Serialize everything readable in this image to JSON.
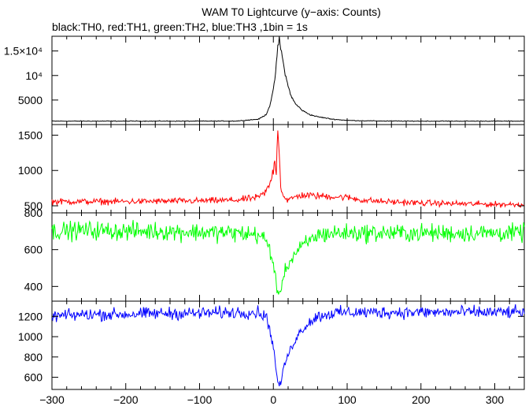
{
  "header": {
    "title": "WAM T0 Lightcurve (y−axis: Counts)",
    "subtitle": "black:TH0, red:TH1, green:TH2, blue:TH3 ,1bin = 1s"
  },
  "chart_data": [
    {
      "type": "line",
      "series": [
        {
          "color": "#000000",
          "x": [
            -300,
            -250,
            -200,
            -150,
            -100,
            -50,
            -20,
            -10,
            -5,
            0,
            2,
            4,
            6,
            8,
            10,
            12,
            14,
            16,
            18,
            20,
            25,
            30,
            40,
            50,
            60,
            80,
            100,
            120,
            150,
            200,
            250,
            300,
            340
          ],
          "y": [
            700,
            700,
            700,
            700,
            700,
            720,
            1100,
            2000,
            3800,
            7000,
            9200,
            12500,
            15500,
            17500,
            15600,
            13800,
            12000,
            10500,
            9000,
            7800,
            5500,
            4200,
            2800,
            2000,
            1600,
            1100,
            850,
            780,
            720,
            700,
            700,
            700,
            700
          ]
        }
      ],
      "xlim": [
        -300,
        340
      ],
      "ylim": [
        0,
        18000
      ],
      "ytick_labels": [
        {
          "value": 5000,
          "text": "5000"
        },
        {
          "value": 10000,
          "text": "10⁴"
        },
        {
          "value": 15000,
          "text": "1.5×10⁴"
        }
      ],
      "yticks": [
        5000,
        10000,
        15000
      ]
    },
    {
      "type": "line",
      "series": [
        {
          "color": "#ff0000",
          "x": [
            -300,
            -250,
            -200,
            -150,
            -100,
            -50,
            -20,
            -10,
            -5,
            0,
            2,
            4,
            6,
            8,
            10,
            12,
            14,
            16,
            20,
            25,
            30,
            40,
            60,
            80,
            100,
            120,
            150,
            200,
            250,
            300,
            340
          ],
          "y": [
            560,
            560,
            560,
            565,
            570,
            580,
            620,
            700,
            800,
            1000,
            1200,
            950,
            1600,
            1300,
            750,
            700,
            650,
            600,
            580,
            600,
            630,
            650,
            640,
            630,
            620,
            580,
            560,
            540,
            530,
            520,
            520
          ]
        }
      ],
      "xlim": [
        -300,
        340
      ],
      "ylim": [
        400,
        1650
      ],
      "ytick_labels": [
        {
          "value": 500,
          "text": "500"
        },
        {
          "value": 1000,
          "text": "1000"
        },
        {
          "value": 1500,
          "text": "1500"
        }
      ],
      "yticks": [
        500,
        1000,
        1500
      ]
    },
    {
      "type": "line",
      "series": [
        {
          "color": "#00ff00",
          "x": [
            -300,
            -250,
            -200,
            -150,
            -100,
            -50,
            -20,
            -10,
            -5,
            0,
            2,
            4,
            6,
            8,
            10,
            12,
            15,
            20,
            25,
            30,
            40,
            50,
            60,
            80,
            100,
            150,
            200,
            250,
            300,
            340
          ],
          "y": [
            700,
            705,
            700,
            700,
            695,
            690,
            680,
            650,
            600,
            520,
            480,
            420,
            360,
            340,
            380,
            430,
            480,
            520,
            550,
            580,
            620,
            650,
            680,
            690,
            690,
            690,
            690,
            690,
            690,
            690
          ]
        }
      ],
      "xlim": [
        -300,
        340
      ],
      "ylim": [
        320,
        800
      ],
      "ytick_labels": [
        {
          "value": 400,
          "text": "400"
        },
        {
          "value": 600,
          "text": "600"
        },
        {
          "value": 800,
          "text": "800"
        }
      ],
      "yticks": [
        400,
        600,
        800
      ]
    },
    {
      "type": "line",
      "series": [
        {
          "color": "#0000ff",
          "x": [
            -300,
            -250,
            -200,
            -150,
            -100,
            -50,
            -20,
            -10,
            -5,
            0,
            2,
            4,
            6,
            8,
            10,
            12,
            15,
            20,
            25,
            30,
            40,
            50,
            60,
            80,
            100,
            150,
            200,
            250,
            300,
            340
          ],
          "y": [
            1200,
            1220,
            1220,
            1230,
            1230,
            1240,
            1240,
            1200,
            1080,
            900,
            780,
            650,
            560,
            520,
            540,
            620,
            720,
            820,
            900,
            980,
            1080,
            1150,
            1200,
            1230,
            1240,
            1240,
            1240,
            1240,
            1240,
            1240
          ]
        }
      ],
      "xlim": [
        -300,
        340
      ],
      "ylim": [
        480,
        1350
      ],
      "ytick_labels": [
        {
          "value": 600,
          "text": "600"
        },
        {
          "value": 800,
          "text": "800"
        },
        {
          "value": 1000,
          "text": "1000"
        },
        {
          "value": 1200,
          "text": "1200"
        }
      ],
      "yticks": [
        600,
        800,
        1000,
        1200
      ]
    }
  ],
  "x_axis": {
    "ticks": [
      -300,
      -200,
      -100,
      0,
      100,
      200,
      300
    ],
    "tick_labels": [
      "−300",
      "−200",
      "−100",
      "0",
      "100",
      "200",
      "300"
    ]
  }
}
